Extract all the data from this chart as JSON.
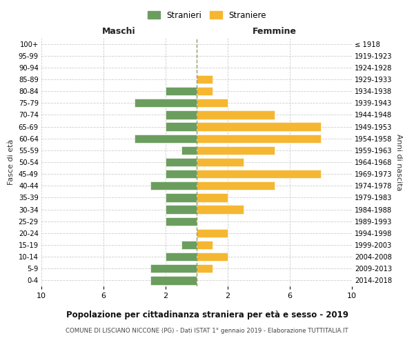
{
  "age_groups": [
    "0-4",
    "5-9",
    "10-14",
    "15-19",
    "20-24",
    "25-29",
    "30-34",
    "35-39",
    "40-44",
    "45-49",
    "50-54",
    "55-59",
    "60-64",
    "65-69",
    "70-74",
    "75-79",
    "80-84",
    "85-89",
    "90-94",
    "95-99",
    "100+"
  ],
  "birth_years": [
    "2014-2018",
    "2009-2013",
    "2004-2008",
    "1999-2003",
    "1994-1998",
    "1989-1993",
    "1984-1988",
    "1979-1983",
    "1974-1978",
    "1969-1973",
    "1964-1968",
    "1959-1963",
    "1954-1958",
    "1949-1953",
    "1944-1948",
    "1939-1943",
    "1934-1938",
    "1929-1933",
    "1924-1928",
    "1919-1923",
    "≤ 1918"
  ],
  "maschi": [
    3,
    3,
    2,
    1,
    0,
    2,
    2,
    2,
    3,
    2,
    2,
    1,
    4,
    2,
    2,
    4,
    2,
    0,
    0,
    0,
    0
  ],
  "femmine": [
    0,
    1,
    2,
    1,
    2,
    0,
    3,
    2,
    5,
    8,
    3,
    5,
    8,
    8,
    5,
    2,
    1,
    1,
    0,
    0,
    0
  ],
  "maschi_color": "#6b9e5e",
  "femmine_color": "#f5b731",
  "title": "Popolazione per cittadinanza straniera per età e sesso - 2019",
  "subtitle": "COMUNE DI LISCIANO NICCONE (PG) - Dati ISTAT 1° gennaio 2019 - Elaborazione TUTTITALIA.IT",
  "legend_maschi": "Stranieri",
  "legend_femmine": "Straniere",
  "xlabel_left": "Maschi",
  "xlabel_right": "Femmine",
  "ylabel_left": "Fasce di età",
  "ylabel_right": "Anni di nascita",
  "xlim": 10,
  "background_color": "#ffffff",
  "grid_color": "#cccccc"
}
